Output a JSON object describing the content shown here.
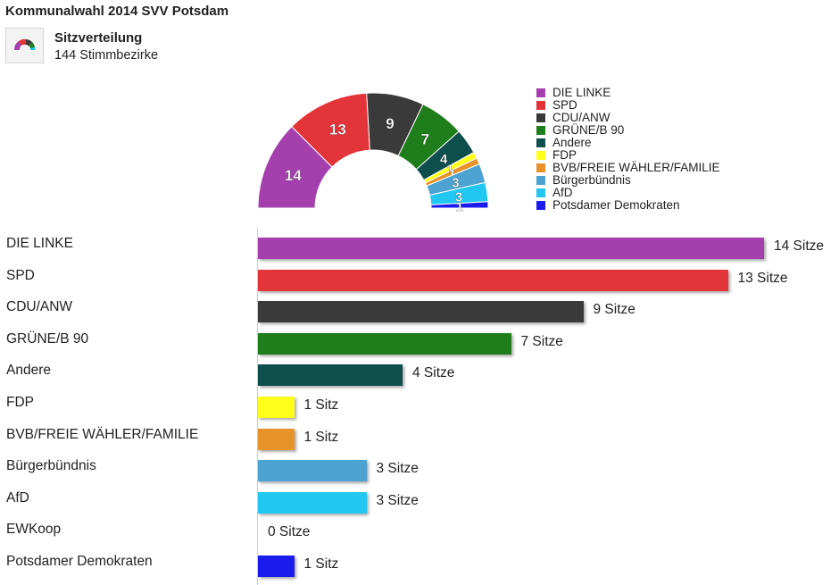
{
  "header": {
    "title": "Kommunalwahl 2014 SVV Potsdam",
    "subtitle": "Sitzverteilung",
    "subtitle_detail": "144 Stimmbezirke",
    "icon": "parliament-arc-icon"
  },
  "chart_data": [
    {
      "type": "pie",
      "variant": "parliament-semicircle",
      "title": "Sitzverteilung",
      "categories": [
        "DIE LINKE",
        "SPD",
        "CDU/ANW",
        "GRÜNE/B 90",
        "Andere",
        "FDP",
        "BVB/FREIE WÄHLER/FAMILIE",
        "Bürgerbündnis",
        "AfD",
        "Potsdamer Demokraten"
      ],
      "values": [
        14,
        13,
        9,
        7,
        4,
        1,
        1,
        3,
        3,
        1
      ],
      "colors": [
        "#a43fad",
        "#e3343a",
        "#3a3a3a",
        "#1f7e1b",
        "#0e4e4c",
        "#ffff1a",
        "#e8922a",
        "#4ca3d2",
        "#22c7f1",
        "#1b1bee"
      ],
      "legend_placement": "right"
    },
    {
      "type": "bar",
      "orientation": "horizontal",
      "categories": [
        "DIE LINKE",
        "SPD",
        "CDU/ANW",
        "GRÜNE/B 90",
        "Andere",
        "FDP",
        "BVB/FREIE WÄHLER/FAMILIE",
        "Bürgerbündnis",
        "AfD",
        "EWKoop",
        "Potsdamer Demokraten"
      ],
      "values": [
        14,
        13,
        9,
        7,
        4,
        1,
        1,
        3,
        3,
        0,
        1
      ],
      "value_labels": [
        "14 Sitze",
        "13 Sitze",
        "9 Sitze",
        "7 Sitze",
        "4 Sitze",
        "1 Sitz",
        "1 Sitz",
        "3 Sitze",
        "3 Sitze",
        "0 Sitze",
        "1 Sitz"
      ],
      "colors": [
        "#a43fad",
        "#e3343a",
        "#3a3a3a",
        "#1f7e1b",
        "#0e4e4c",
        "#ffff1a",
        "#e8922a",
        "#4ca3d2",
        "#22c7f1",
        "#999999",
        "#1b1bee"
      ],
      "xlim": [
        0,
        14
      ],
      "grid": false
    }
  ]
}
